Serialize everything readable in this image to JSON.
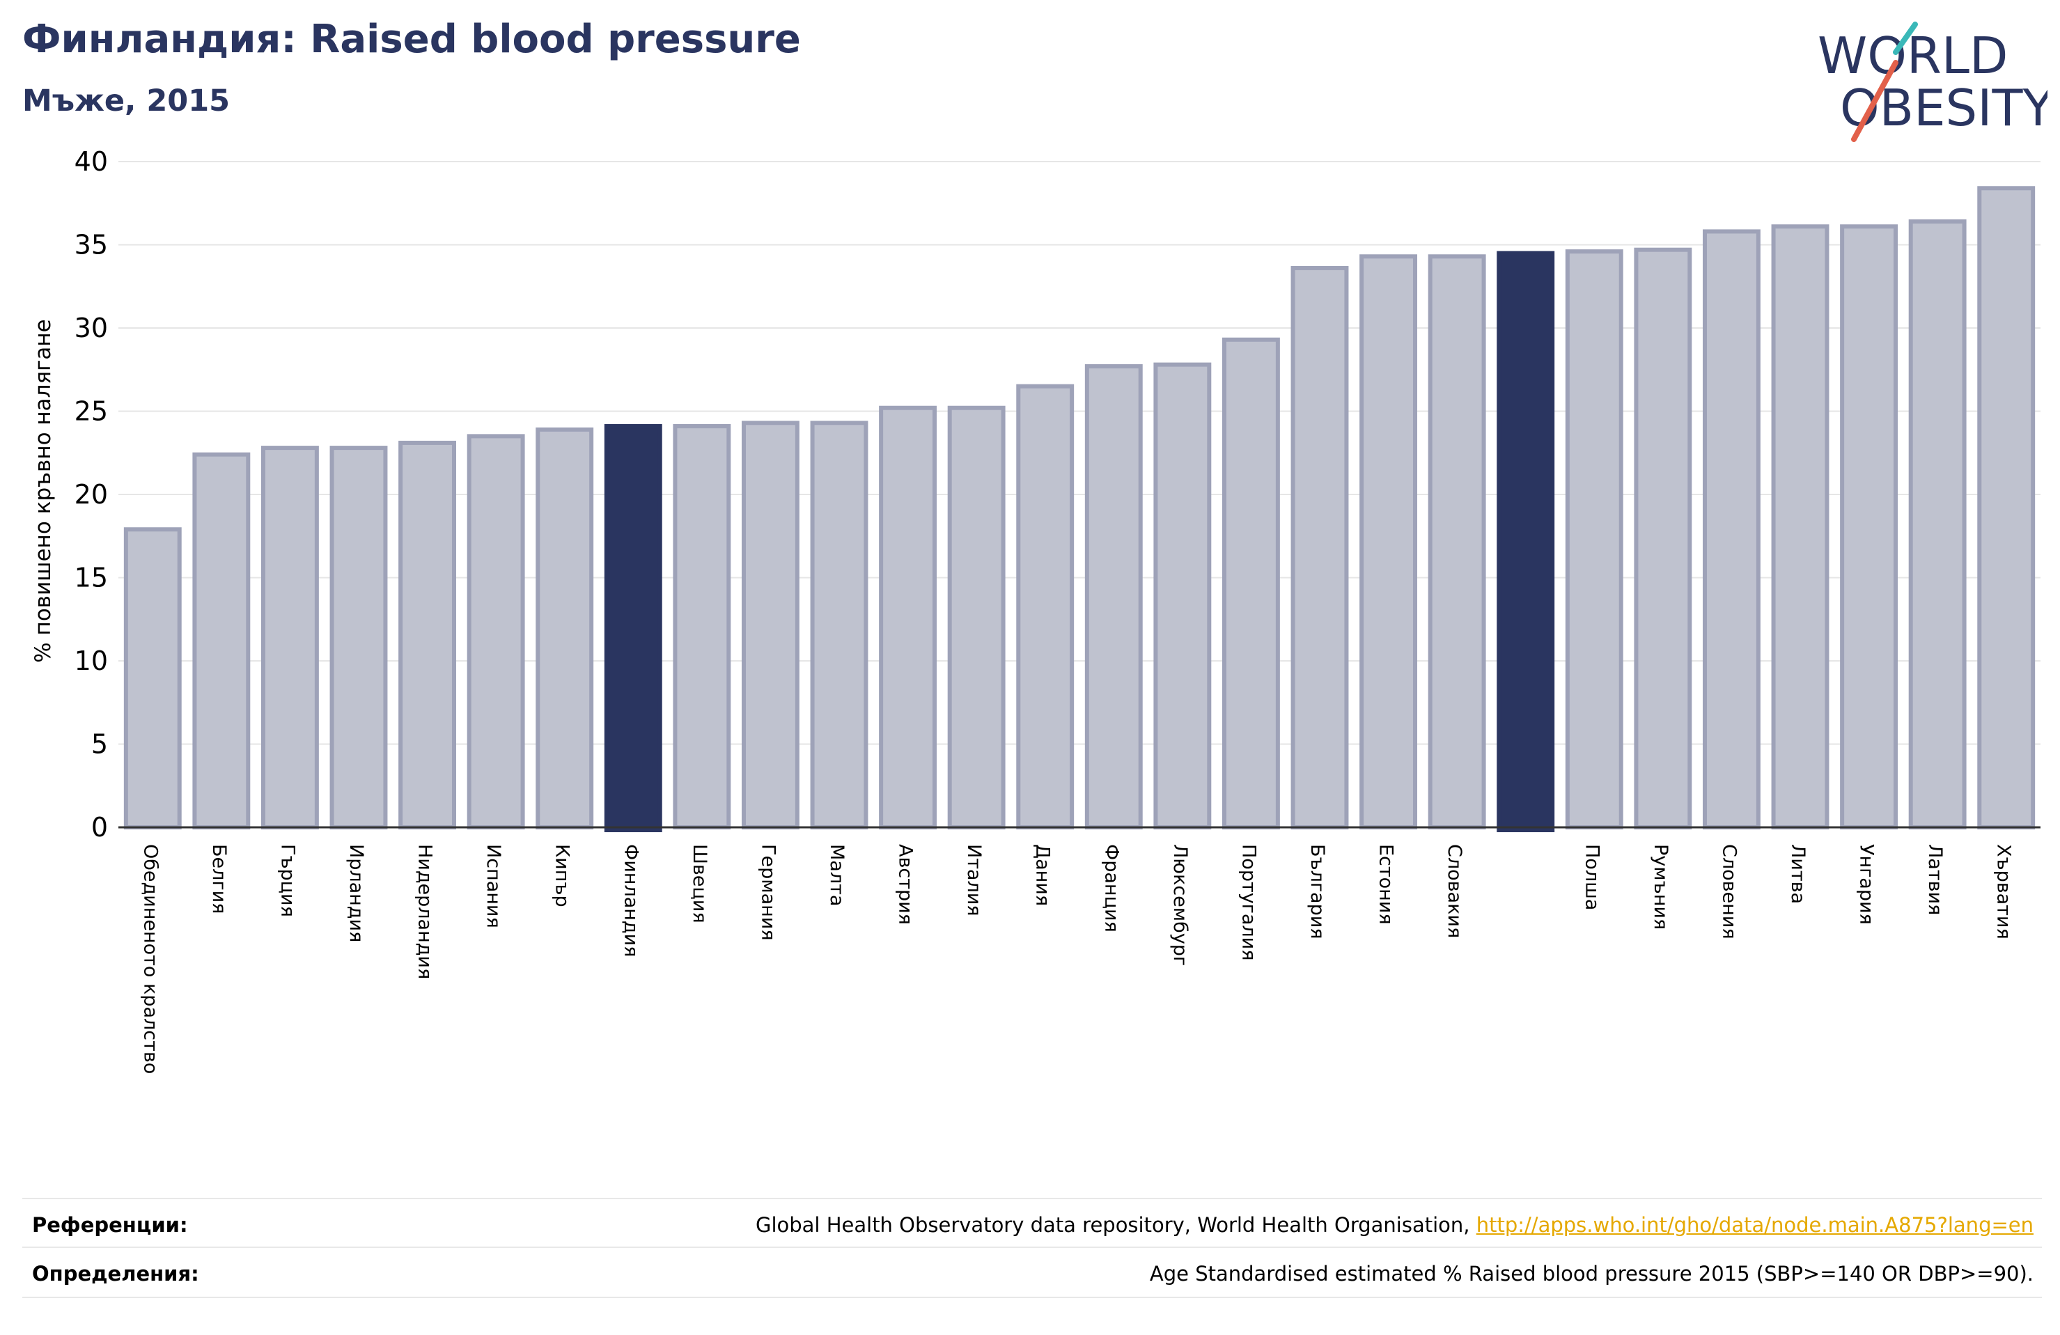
{
  "header": {
    "title": "Финландия: Raised blood pressure",
    "subtitle": "Мъже, 2015"
  },
  "logo": {
    "line1": "WORLD",
    "line2": "OBESITY",
    "slash_colors": [
      "#3ab8b8",
      "#e2604a"
    ]
  },
  "colors": {
    "highlight": "#2a3560",
    "bar_fill": "#bfc2cf",
    "bar_edge": "#9ea2b8",
    "text_dark": "#2a3560",
    "link": "#e5a800"
  },
  "chart_data": {
    "type": "bar",
    "title": "Финландия: Raised blood pressure",
    "subtitle": "Мъже, 2015",
    "xlabel": "",
    "ylabel": "% повишено кръвно налягане",
    "ylim": [
      0,
      40
    ],
    "yticks": [
      0,
      5,
      10,
      15,
      20,
      25,
      30,
      35,
      40
    ],
    "grid": true,
    "categories": [
      "Обединеното кралство",
      "Белгия",
      "Гърция",
      "Ирландия",
      "Нидерландия",
      "Испания",
      "Кипър",
      "Финландия",
      "Швеция",
      "Германия",
      "Малта",
      "Австрия",
      "Италия",
      "Дания",
      "Франция",
      "Люксембург",
      "Португалия",
      "България",
      "Естония",
      "Словакия",
      "",
      "Полша",
      "Румъния",
      "Словения",
      "Литва",
      "Унгария",
      "Латвия",
      "Хърватия"
    ],
    "values": [
      17.9,
      22.4,
      22.8,
      22.8,
      23.1,
      23.5,
      23.9,
      24.1,
      24.1,
      24.3,
      24.3,
      25.2,
      25.2,
      26.5,
      27.7,
      27.8,
      29.3,
      33.6,
      34.3,
      34.3,
      34.5,
      34.6,
      34.7,
      35.8,
      36.1,
      36.1,
      36.4,
      38.4
    ],
    "highlighted": [
      7,
      20
    ]
  },
  "footer": {
    "references_label": "Референции:",
    "references_text": "Global Health Observatory data repository, World Health Organisation, ",
    "references_link": "http://apps.who.int/gho/data/node.main.A875?lang=en",
    "definitions_label": "Определения:",
    "definitions_text": "Age Standardised estimated % Raised blood pressure 2015 (SBP>=140 OR DBP>=90)."
  }
}
